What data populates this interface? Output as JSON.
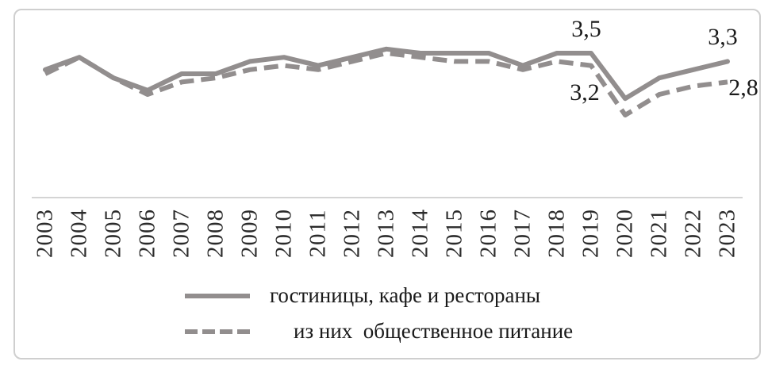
{
  "chart_data": {
    "type": "line",
    "title": "",
    "xlabel": "",
    "ylabel": "",
    "categories": [
      "2003",
      "2004",
      "2005",
      "2006",
      "2007",
      "2008",
      "2009",
      "2010",
      "2011",
      "2012",
      "2013",
      "2014",
      "2015",
      "2016",
      "2017",
      "2018",
      "2019",
      "2020",
      "2021",
      "2022",
      "2023"
    ],
    "series": [
      {
        "name": "гостиницы, кафе и рестораны",
        "line_style": "solid",
        "values": [
          3.1,
          3.4,
          2.9,
          2.6,
          3.0,
          3.0,
          3.3,
          3.4,
          3.2,
          3.4,
          3.6,
          3.5,
          3.5,
          3.5,
          3.2,
          3.5,
          3.5,
          2.4,
          2.9,
          3.1,
          3.3
        ]
      },
      {
        "name": "из них общественное питание",
        "line_style": "dashed",
        "values": [
          3.0,
          3.4,
          2.9,
          2.5,
          2.8,
          2.9,
          3.1,
          3.2,
          3.1,
          3.3,
          3.5,
          3.4,
          3.3,
          3.3,
          3.1,
          3.3,
          3.2,
          2.0,
          2.5,
          2.7,
          2.8
        ]
      }
    ],
    "data_labels": [
      {
        "text": "3,5",
        "series": 0,
        "category": "2019",
        "value": 3.5,
        "placement": "above"
      },
      {
        "text": "3,2",
        "series": 1,
        "category": "2019",
        "value": 3.2,
        "placement": "below-left"
      },
      {
        "text": "3,3",
        "series": 0,
        "category": "2023",
        "value": 3.3,
        "placement": "above"
      },
      {
        "text": "2,8",
        "series": 1,
        "category": "2023",
        "value": 2.8,
        "placement": "right"
      }
    ],
    "decimal_separator": ",",
    "ylim": [
      0,
      4.4
    ],
    "grid": false,
    "y_axis_visible": false,
    "legend_position": "bottom"
  },
  "legend": {
    "items": [
      {
        "label": "гостиницы, кафе и рестораны",
        "swatch": "solid-line"
      },
      {
        "label": "из них  общественное питание",
        "swatch": "dashed-line"
      }
    ]
  },
  "colors": {
    "series_line": "#928e8e",
    "axis_line": "#c6c6c6",
    "frame_border": "#cfcfcf",
    "tick_text": "#2b2b2b",
    "label_text": "#1a1a1a",
    "background": "#ffffff"
  }
}
